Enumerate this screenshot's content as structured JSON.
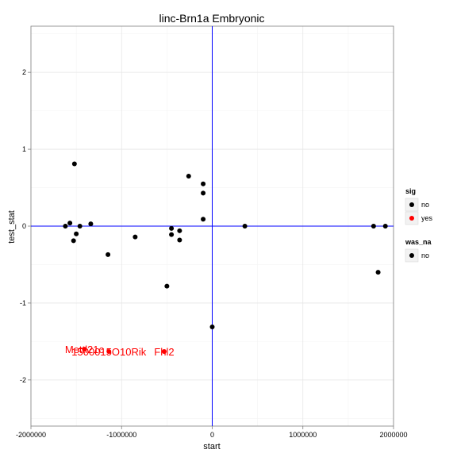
{
  "chart_data": {
    "type": "scatter",
    "title": "linc-Brn1a Embryonic",
    "xlabel": "start",
    "ylabel": "test_stat",
    "xlim": [
      -2000000,
      2000000
    ],
    "ylim": [
      -2.6,
      2.6
    ],
    "xticks": [
      {
        "value": -2000000,
        "label": "-2000000"
      },
      {
        "value": -1000000,
        "label": "-1000000"
      },
      {
        "value": 0,
        "label": "0"
      },
      {
        "value": 1000000,
        "label": "1000000"
      },
      {
        "value": 2000000,
        "label": "2000000"
      }
    ],
    "yticks": [
      {
        "value": -2,
        "label": "-2"
      },
      {
        "value": -1,
        "label": "-1"
      },
      {
        "value": 0,
        "label": "0"
      },
      {
        "value": 1,
        "label": "1"
      },
      {
        "value": 2,
        "label": "2"
      }
    ],
    "reference_lines": {
      "vline_x": 0,
      "hline_y": 0,
      "color": "#0000ff"
    },
    "grid": true,
    "legend_position": "right",
    "legends": [
      {
        "title": "sig",
        "items": [
          {
            "label": "no",
            "color": "#000000"
          },
          {
            "label": "yes",
            "color": "#ff0000"
          }
        ]
      },
      {
        "title": "was_na",
        "items": [
          {
            "label": "no",
            "color": "#000000"
          }
        ]
      }
    ],
    "points": [
      {
        "x": -1620000,
        "y": 0.0,
        "sig": "no"
      },
      {
        "x": -1570000,
        "y": 0.04,
        "sig": "no"
      },
      {
        "x": -1520000,
        "y": 0.81,
        "sig": "no"
      },
      {
        "x": -1530000,
        "y": -0.19,
        "sig": "no"
      },
      {
        "x": -1500000,
        "y": -0.1,
        "sig": "no"
      },
      {
        "x": -1460000,
        "y": 0.0,
        "sig": "no"
      },
      {
        "x": -1340000,
        "y": 0.03,
        "sig": "no"
      },
      {
        "x": -1150000,
        "y": -0.37,
        "sig": "no"
      },
      {
        "x": -850000,
        "y": -0.14,
        "sig": "no"
      },
      {
        "x": -500000,
        "y": -0.78,
        "sig": "no"
      },
      {
        "x": -450000,
        "y": -0.03,
        "sig": "no"
      },
      {
        "x": -450000,
        "y": -0.11,
        "sig": "no"
      },
      {
        "x": -360000,
        "y": -0.06,
        "sig": "no"
      },
      {
        "x": -360000,
        "y": -0.18,
        "sig": "no"
      },
      {
        "x": -260000,
        "y": 0.65,
        "sig": "no"
      },
      {
        "x": -100000,
        "y": 0.55,
        "sig": "no"
      },
      {
        "x": -100000,
        "y": 0.43,
        "sig": "no"
      },
      {
        "x": -100000,
        "y": 0.09,
        "sig": "no"
      },
      {
        "x": 0,
        "y": -1.31,
        "sig": "no"
      },
      {
        "x": 360000,
        "y": 0.0,
        "sig": "no"
      },
      {
        "x": 1780000,
        "y": 0.0,
        "sig": "no"
      },
      {
        "x": 1830000,
        "y": -0.6,
        "sig": "no"
      },
      {
        "x": 1910000,
        "y": 0.0,
        "sig": "no"
      },
      {
        "x": -1410000,
        "y": -1.6,
        "sig": "yes"
      },
      {
        "x": -1140000,
        "y": -1.63,
        "sig": "yes"
      },
      {
        "x": -530000,
        "y": -1.63,
        "sig": "yes"
      }
    ],
    "point_labels": [
      {
        "text": "Mettl21c",
        "x": -1410000,
        "y": -1.6,
        "color": "#ff0000"
      },
      {
        "text": "1500015O10Rik",
        "x": -1140000,
        "y": -1.63,
        "color": "#ff0000"
      },
      {
        "text": "Fhl2",
        "x": -530000,
        "y": -1.63,
        "color": "#ff0000"
      }
    ]
  }
}
